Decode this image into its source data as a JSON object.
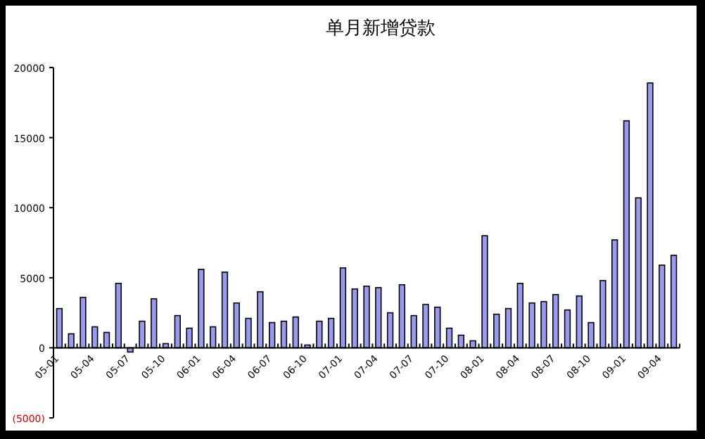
{
  "chart_data": {
    "type": "bar",
    "title": "单月新增贷款",
    "categories": [
      "05-01",
      null,
      null,
      "05-04",
      null,
      null,
      "05-07",
      null,
      null,
      "05-10",
      null,
      null,
      "06-01",
      null,
      null,
      "06-04",
      null,
      null,
      "06-07",
      null,
      null,
      "06-10",
      null,
      null,
      "07-01",
      null,
      null,
      "07-04",
      null,
      null,
      "07-07",
      null,
      null,
      "07-10",
      null,
      null,
      "08-01",
      null,
      null,
      "08-04",
      null,
      null,
      "08-07",
      null,
      null,
      "08-10",
      null,
      null,
      "09-01",
      null,
      null,
      "09-04",
      null
    ],
    "series": [
      {
        "color": "#9999ee",
        "values": [
          2800,
          1000,
          3600,
          1500,
          1100,
          4600,
          -300,
          1900,
          3500,
          300,
          2300,
          1400,
          5600,
          1500,
          5400,
          3200,
          2100,
          4000,
          1800,
          1900,
          2200,
          200,
          1900,
          2100,
          5700,
          4200,
          4400,
          4300,
          2500,
          4500,
          2300,
          3100,
          2900,
          1400,
          900,
          500,
          8000,
          2400,
          2800,
          4600,
          3200,
          3300,
          3800,
          2700,
          3700,
          1800,
          4800,
          7700,
          16200,
          10700,
          18900,
          5900,
          6600
        ]
      }
    ],
    "ylim": [
      -5000,
      20000
    ],
    "yticks": [
      {
        "value": -5000,
        "label": "(5000)"
      },
      0,
      5000,
      10000,
      15000,
      20000
    ],
    "grid": false
  }
}
